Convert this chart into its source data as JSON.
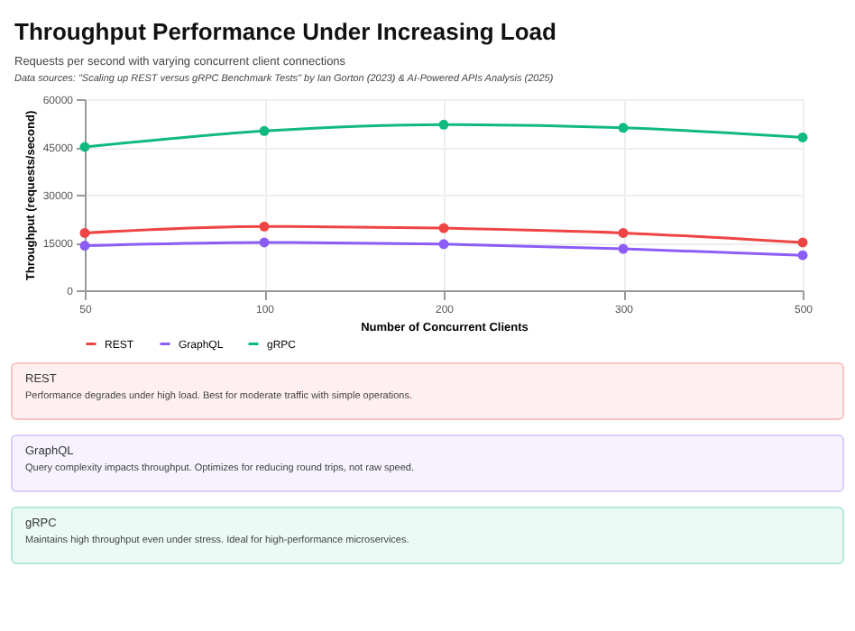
{
  "chart_data": [
    {
      "type": "line",
      "title": "Throughput Performance Under Increasing Load",
      "subtitle": "Requests per second with varying concurrent client connections",
      "annotations": [
        "Data sources: \"Scaling up REST versus gRPC Benchmark Tests\" by Ian Gorton (2023) & AI-Powered APIs Analysis (2025)"
      ],
      "xlabel": "Number of Concurrent Clients",
      "ylabel": "Throughput (requests/second)",
      "categories": [
        "50",
        "100",
        "200",
        "300",
        "500"
      ],
      "series": [
        {
          "name": "REST",
          "color": "#ef4444",
          "values": [
            18000,
            20000,
            19500,
            18000,
            15000
          ]
        },
        {
          "name": "GraphQL",
          "color": "#8b5cf6",
          "values": [
            14000,
            15000,
            14500,
            13000,
            11000
          ]
        },
        {
          "name": "gRPC",
          "color": "#10b981",
          "values": [
            45000,
            50000,
            52000,
            51000,
            48000
          ]
        }
      ],
      "ylim": [
        0,
        60000
      ],
      "yticks": [
        0,
        15000,
        30000,
        45000,
        60000
      ],
      "grid": true,
      "legend": "bottom",
      "marker": "circle",
      "line_style": "solid"
    },
    {
      "type": "other",
      "annotations": [
        "REST",
        "Performance degrades under high load. Best for moderate traffic with simple operations.",
        "GraphQL",
        "Query complexity impacts throughput. Optimizes for reducing round trips, not raw speed.",
        "gRPC",
        "Maintains high throughput even under stress. Ideal for high-performance microservices."
      ]
    }
  ]
}
